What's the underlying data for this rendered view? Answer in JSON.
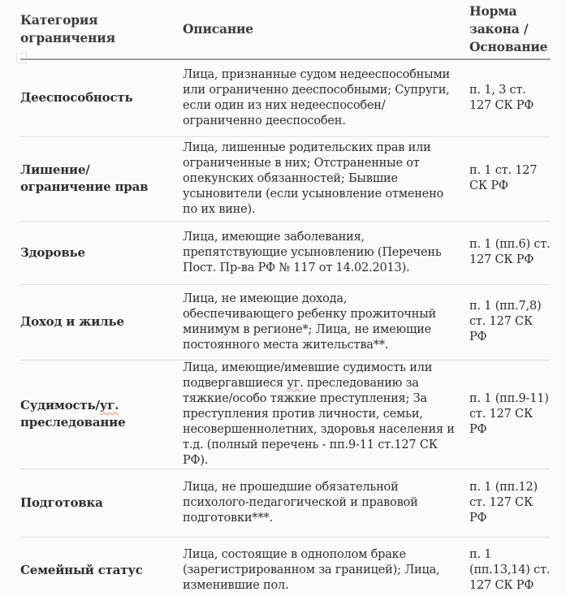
{
  "page": {
    "background": "#fbfbfb",
    "text_color": "#2e2e2e",
    "header_divider_color": "#9e9e9e",
    "row_divider_color": "#dedede",
    "spellcheck_underline_color": "#e08a7e"
  },
  "table": {
    "headers": [
      "Категория ограничения",
      "Описание",
      "Норма закона / Основание"
    ],
    "rows": [
      {
        "category": "Дееспособность",
        "description": "Лица, признанные судом недееспособными или ограниченно дееспособными; Супруги, если один из них недееспособен/ограниченно дееспособен.",
        "norm": "п. 1, 3 ст. 127 СК РФ"
      },
      {
        "category": "Лишение/ограничение прав",
        "description": "Лица, лишенные родительских прав или ограниченные в них; Отстраненные от опекунских обязанностей; Бывшие усыновители (если усыновление отменено по их вине).",
        "norm": "п. 1 ст. 127 СК РФ"
      },
      {
        "category": "Здоровье",
        "description": "Лица, имеющие заболевания, препятствующие усыновлению (Перечень Пост. Пр-ва РФ № 117 от 14.02.2013).",
        "norm": "п. 1 (пп.6) ст. 127 СК РФ"
      },
      {
        "category": "Доход и жилье",
        "description": "Лица, не имеющие дохода, обеспечивающего ребенку прожиточный минимум в регионе*; Лица, не имеющие постоянного места жительства**.",
        "norm": "п. 1 (пп.7,8) ст. 127 СК РФ"
      },
      {
        "category": "Судимость/уг. преследование",
        "description": "Лица, имеющие/имевшие судимость или подвергавшиеся уг. преследованию за тяжкие/особо тяжкие преступления; За преступления против личности, семьи, несовершеннолетних, здоровья населения и т.д. (полный перечень - пп.9-11 ст.127 СК РФ).",
        "norm": "п. 1 (пп.9-11) ст. 127 СК РФ"
      },
      {
        "category": "Подготовка",
        "description": "Лица, не прошедшие обязательной психолого-педагогической и правовой подготовки***.",
        "norm": "п. 1 (пп.12) ст. 127 СК РФ"
      },
      {
        "category": "Семейный статус",
        "description": "Лица, состоящие в однополом браке (зарегистрированном за границей); Лица, изменившие пол.",
        "norm": "п. 1 (пп.13,14) ст. 127 СК РФ"
      }
    ]
  },
  "spellcheck": {
    "words": [
      "уг."
    ]
  }
}
